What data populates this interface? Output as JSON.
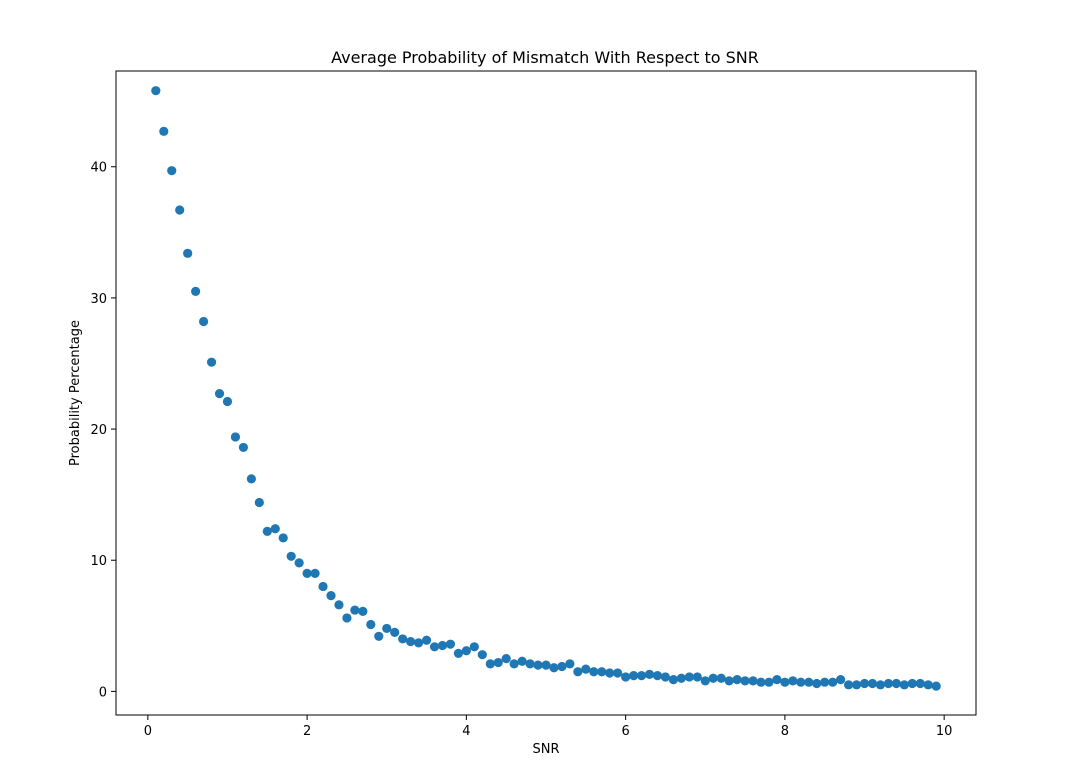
{
  "chart_data": {
    "type": "scatter",
    "title": "Average Probability of Mismatch With Respect to SNR",
    "xlabel": "SNR",
    "ylabel": "Probability Percentage",
    "xlim": [
      -0.4,
      10.4
    ],
    "ylim": [
      -1.8,
      47.3
    ],
    "xticks": [
      0,
      2,
      4,
      6,
      8,
      10
    ],
    "yticks": [
      0,
      10,
      20,
      30,
      40
    ],
    "grid": false,
    "legend": "none",
    "marker_color": "#1f77b4",
    "series": [
      {
        "x": [
          0.1,
          0.2,
          0.3,
          0.4,
          0.5,
          0.6,
          0.7,
          0.8,
          0.9,
          1.0,
          1.1,
          1.2,
          1.3,
          1.4,
          1.5,
          1.6,
          1.7,
          1.8,
          1.9,
          2.0,
          2.1,
          2.2,
          2.3,
          2.4,
          2.5,
          2.6,
          2.7,
          2.8,
          2.9,
          3.0,
          3.1,
          3.2,
          3.3,
          3.4,
          3.5,
          3.6,
          3.7,
          3.8,
          3.9,
          4.0,
          4.1,
          4.2,
          4.3,
          4.4,
          4.5,
          4.6,
          4.7,
          4.8,
          4.9,
          5.0,
          5.1,
          5.2,
          5.3,
          5.4,
          5.5,
          5.6,
          5.7,
          5.8,
          5.9,
          6.0,
          6.1,
          6.2,
          6.3,
          6.4,
          6.5,
          6.6,
          6.7,
          6.8,
          6.9,
          7.0,
          7.1,
          7.2,
          7.3,
          7.4,
          7.5,
          7.6,
          7.7,
          7.8,
          7.9,
          8.0,
          8.1,
          8.2,
          8.3,
          8.4,
          8.5,
          8.6,
          8.7,
          8.8,
          8.9,
          9.0,
          9.1,
          9.2,
          9.3,
          9.4,
          9.5,
          9.6,
          9.7,
          9.8,
          9.9
        ],
        "y": [
          45.8,
          42.7,
          39.7,
          36.7,
          33.4,
          30.5,
          28.2,
          25.1,
          22.7,
          22.1,
          19.4,
          18.6,
          16.2,
          14.4,
          12.2,
          12.4,
          11.7,
          10.3,
          9.8,
          9.0,
          9.0,
          8.0,
          7.3,
          6.6,
          5.6,
          6.2,
          6.1,
          5.1,
          4.2,
          4.8,
          4.5,
          4.0,
          3.8,
          3.7,
          3.9,
          3.4,
          3.5,
          3.6,
          2.9,
          3.1,
          3.4,
          2.8,
          2.1,
          2.2,
          2.5,
          2.1,
          2.3,
          2.1,
          2.0,
          2.0,
          1.8,
          1.9,
          2.1,
          1.5,
          1.7,
          1.5,
          1.5,
          1.4,
          1.4,
          1.1,
          1.2,
          1.2,
          1.3,
          1.2,
          1.1,
          0.9,
          1.0,
          1.1,
          1.1,
          0.8,
          1.0,
          1.0,
          0.8,
          0.9,
          0.8,
          0.8,
          0.7,
          0.7,
          0.9,
          0.7,
          0.8,
          0.7,
          0.7,
          0.6,
          0.7,
          0.7,
          0.9,
          0.5,
          0.5,
          0.6,
          0.6,
          0.5,
          0.6,
          0.6,
          0.5,
          0.6,
          0.6,
          0.5,
          0.4
        ]
      }
    ]
  }
}
